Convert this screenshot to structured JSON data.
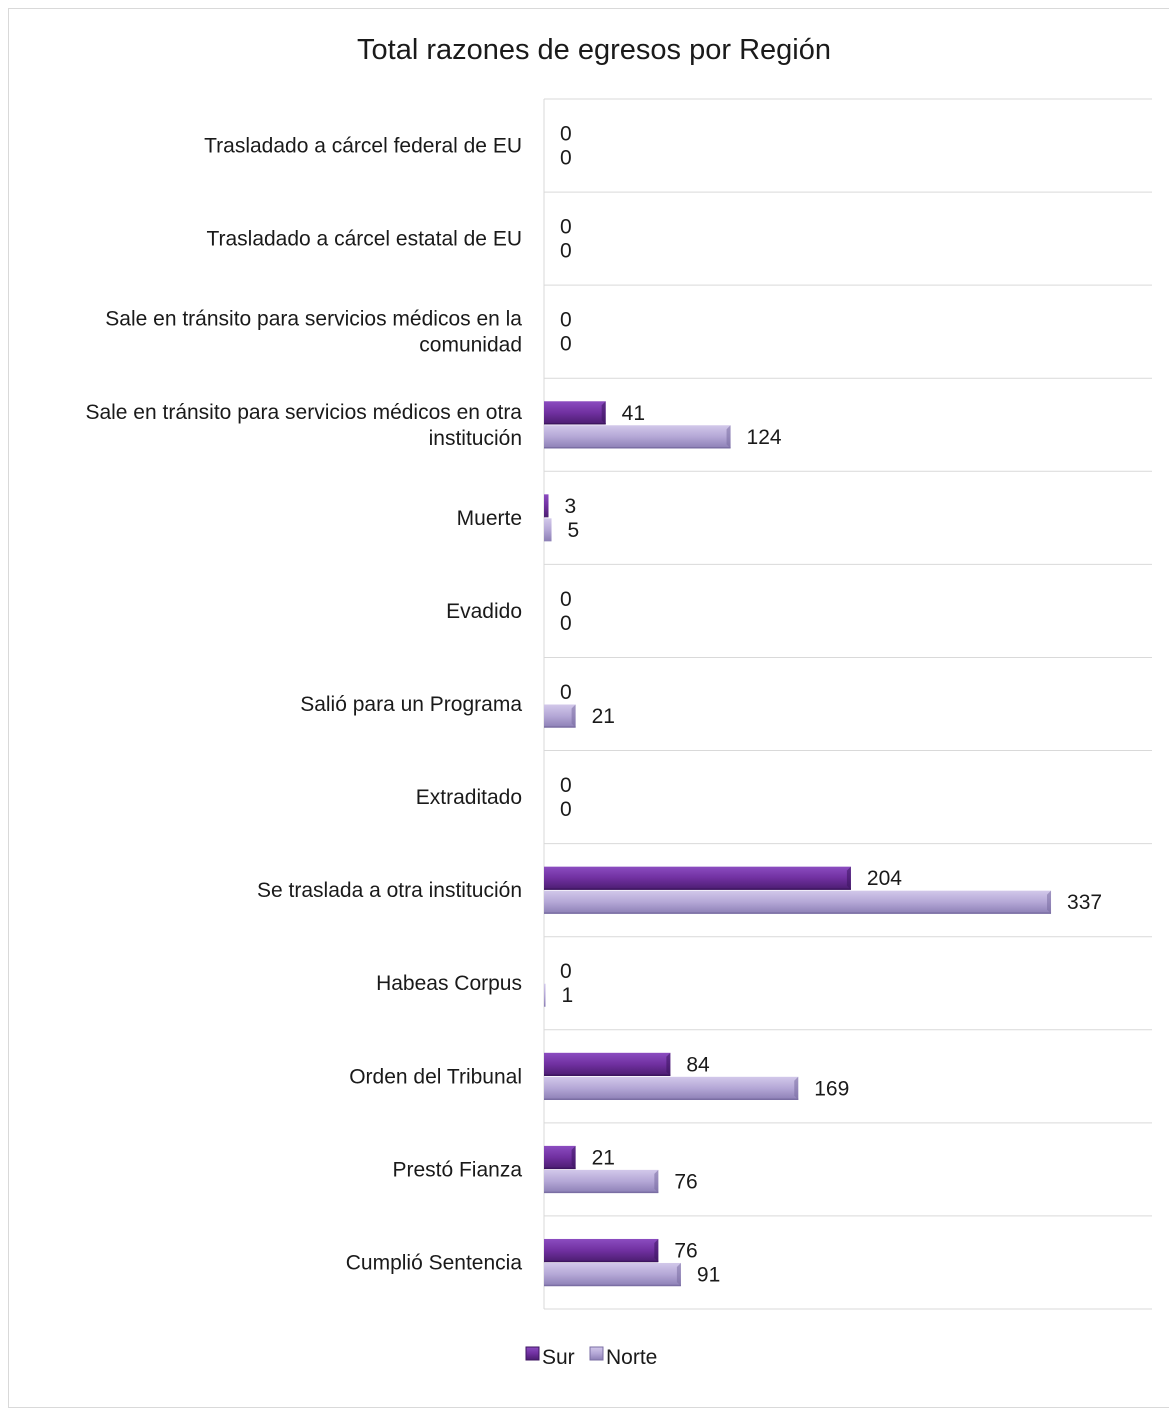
{
  "chart_data": {
    "type": "bar",
    "orientation": "horizontal",
    "title": "Total razones de egresos por Región",
    "categories": [
      "Trasladado a cárcel federal de EU",
      "Trasladado a cárcel estatal de EU",
      "Sale en tránsito para servicios médicos en la comunidad",
      "Sale en tránsito para servicios médicos en otra institución",
      "Muerte",
      "Evadido",
      "Salió para un Programa",
      "Extraditado",
      "Se traslada a otra institución",
      "Habeas Corpus",
      "Orden del Tribunal",
      "Prestó Fianza",
      "Cumplió Sentencia"
    ],
    "category_lines": [
      [
        "Trasladado a cárcel federal de EU"
      ],
      [
        "Trasladado a cárcel estatal de EU"
      ],
      [
        "Sale en tránsito para servicios médicos en la",
        "comunidad"
      ],
      [
        "Sale en tránsito para servicios médicos en otra",
        "institución"
      ],
      [
        "Muerte"
      ],
      [
        "Evadido"
      ],
      [
        "Salió para un Programa"
      ],
      [
        "Extraditado"
      ],
      [
        "Se traslada a otra institución"
      ],
      [
        "Habeas Corpus"
      ],
      [
        "Orden del Tribunal"
      ],
      [
        "Prestó Fianza"
      ],
      [
        "Cumplió Sentencia"
      ]
    ],
    "series": [
      {
        "name": "Sur",
        "color": "#7030a0",
        "values": [
          0,
          0,
          0,
          41,
          3,
          0,
          0,
          0,
          204,
          0,
          84,
          21,
          76
        ]
      },
      {
        "name": "Norte",
        "color": "#b4a7d6",
        "values": [
          0,
          0,
          0,
          124,
          5,
          0,
          21,
          0,
          337,
          1,
          169,
          76,
          91
        ]
      }
    ],
    "xlim": [
      0,
      400
    ],
    "gridlines": "horizontal category separators",
    "legend_position": "bottom",
    "data_labels": true
  }
}
